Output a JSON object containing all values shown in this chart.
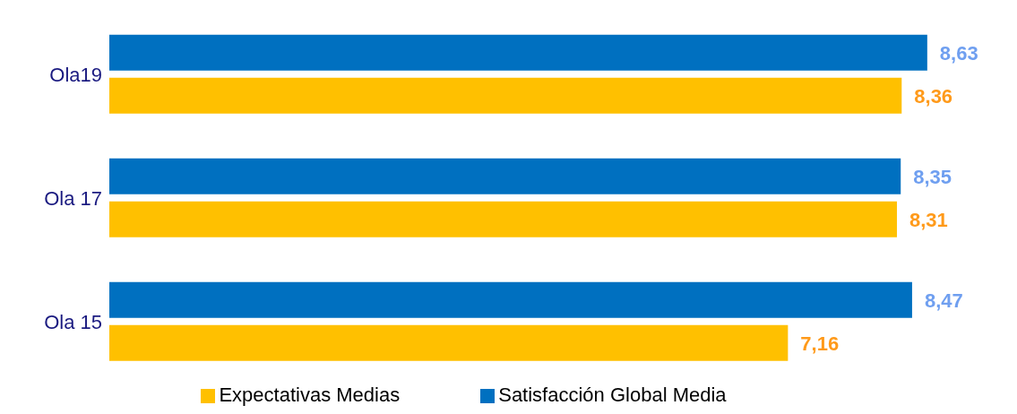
{
  "chart_data": {
    "type": "bar",
    "orientation": "horizontal",
    "categories": [
      "Ola19",
      "Ola 17",
      "Ola 15"
    ],
    "series": [
      {
        "name": "Satisfacción Global Media",
        "color": "#0070c0",
        "values": [
          8.63,
          8.35,
          8.47
        ],
        "value_labels": [
          "8,63",
          "8,35",
          "8,47"
        ]
      },
      {
        "name": "Expectativas Medias",
        "color": "#ffc000",
        "values": [
          8.36,
          8.31,
          7.16
        ],
        "value_labels": [
          "8,36",
          "8,31",
          "7,16"
        ]
      }
    ],
    "legend": "bottom",
    "grid": false
  }
}
